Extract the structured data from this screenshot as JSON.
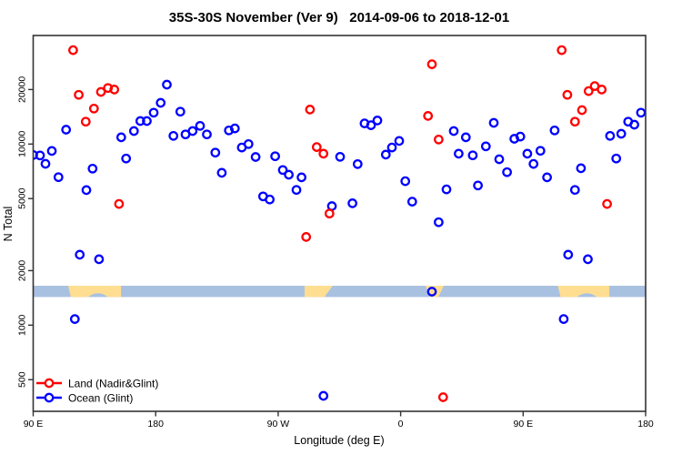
{
  "title": "35S-30S November (Ver 9)   2014-09-06 to 2018-12-01",
  "axes": {
    "x": {
      "label": "Longitude (deg E)",
      "ticks": [
        {
          "t": 0,
          "label": "90 E"
        },
        {
          "t": 90,
          "label": "180"
        },
        {
          "t": 180,
          "label": "90 W"
        },
        {
          "t": 270,
          "label": "0"
        },
        {
          "t": 360,
          "label": "90 E"
        },
        {
          "t": 450,
          "label": "180"
        }
      ]
    },
    "y": {
      "label": "N Total",
      "scale": "log10",
      "ticks": [
        {
          "v": 500,
          "label": "500"
        },
        {
          "v": 1000,
          "label": "1000"
        },
        {
          "v": 2000,
          "label": "2000"
        },
        {
          "v": 5000,
          "label": "5000"
        },
        {
          "v": 10000,
          "label": "10000"
        },
        {
          "v": 20000,
          "label": "20000"
        }
      ]
    }
  },
  "legend": [
    {
      "label": "Land (Nadir&Glint)",
      "color": "#ff0000"
    },
    {
      "label": "Ocean (Glint)",
      "color": "#0000ff"
    }
  ],
  "colors": {
    "land_series": "#ff0000",
    "ocean_series": "#0000ff",
    "band_ocean": "#a9c1e1",
    "band_land": "#ffde91",
    "axis_line": "#333333"
  },
  "chart_data": {
    "type": "scatter",
    "title": "35S-30S November (Ver 9)   2014-09-06 to 2018-12-01",
    "xlabel": "Longitude (deg E)",
    "ylabel": "N Total",
    "x_axis_note": "x = degrees eastward along axis starting at 90E; axis spans 450 deg (90E -> 180 -> 90W -> 0 -> 90E -> 180), so 90E-180 data appears at both ends",
    "x_range_deg": [
      0,
      450
    ],
    "ylim": [
      330,
      40000
    ],
    "y_scale": "log10",
    "grid": false,
    "legend_position": "bottom-left inside plot",
    "series": [
      {
        "name": "Land (Nadir&Glint)",
        "color": "#ff0000",
        "points": [
          [
            29.3,
            33000
          ],
          [
            33.5,
            18700
          ],
          [
            38.6,
            13300
          ],
          [
            44.6,
            15700
          ],
          [
            49.8,
            19400
          ],
          [
            54.9,
            20400
          ],
          [
            59.6,
            20000
          ],
          [
            63.1,
            4670
          ],
          [
            200.6,
            3070
          ],
          [
            203.4,
            15500
          ],
          [
            208.3,
            9630
          ],
          [
            213.3,
            8850
          ],
          [
            217.7,
            4130
          ],
          [
            290.1,
            14300
          ],
          [
            293.0,
            27600
          ],
          [
            297.9,
            10600
          ],
          [
            301.2,
            400
          ],
          [
            388.3,
            33000
          ],
          [
            392.5,
            18700
          ],
          [
            398.1,
            13300
          ],
          [
            403.2,
            15400
          ],
          [
            408.1,
            19600
          ],
          [
            412.6,
            20900
          ],
          [
            417.7,
            20000
          ],
          [
            421.7,
            4670
          ]
        ]
      },
      {
        "name": "Ocean (Glint)",
        "color": "#0000ff",
        "points": [
          [
            0.0,
            8700
          ],
          [
            5.0,
            8650
          ],
          [
            9.0,
            7780
          ],
          [
            13.7,
            9160
          ],
          [
            18.6,
            6560
          ],
          [
            24.2,
            12000
          ],
          [
            30.6,
            1080
          ],
          [
            34.2,
            2450
          ],
          [
            39.1,
            5570
          ],
          [
            43.6,
            7320
          ],
          [
            48.4,
            2310
          ],
          [
            64.7,
            10900
          ],
          [
            68.3,
            8320
          ],
          [
            74.0,
            11800
          ],
          [
            78.7,
            13400
          ],
          [
            83.5,
            13400
          ],
          [
            88.5,
            14900
          ],
          [
            93.7,
            16900
          ],
          [
            98.2,
            21300
          ],
          [
            103.0,
            11100
          ],
          [
            108.1,
            15100
          ],
          [
            111.9,
            11300
          ],
          [
            117.1,
            11800
          ],
          [
            122.6,
            12600
          ],
          [
            127.6,
            11300
          ],
          [
            133.8,
            8970
          ],
          [
            138.6,
            6940
          ],
          [
            143.8,
            11900
          ],
          [
            148.2,
            12200
          ],
          [
            153.3,
            9570
          ],
          [
            158.2,
            10000
          ],
          [
            163.4,
            8480
          ],
          [
            168.9,
            5140
          ],
          [
            173.8,
            4940
          ],
          [
            177.8,
            8560
          ],
          [
            183.4,
            7190
          ],
          [
            187.8,
            6770
          ],
          [
            193.4,
            5580
          ],
          [
            197.2,
            6550
          ],
          [
            213.3,
            407
          ],
          [
            219.5,
            4540
          ],
          [
            225.5,
            8500
          ],
          [
            234.6,
            4710
          ],
          [
            238.4,
            7750
          ],
          [
            243.5,
            13000
          ],
          [
            248.2,
            12700
          ],
          [
            252.9,
            13500
          ],
          [
            259.1,
            8740
          ],
          [
            263.6,
            9570
          ],
          [
            268.9,
            10400
          ],
          [
            273.4,
            6240
          ],
          [
            278.5,
            4810
          ],
          [
            293.0,
            1530
          ],
          [
            297.9,
            3700
          ],
          [
            303.7,
            5620
          ],
          [
            309.0,
            11800
          ],
          [
            312.6,
            8850
          ],
          [
            317.9,
            10900
          ],
          [
            323.0,
            8660
          ],
          [
            326.8,
            5910
          ],
          [
            332.6,
            9720
          ],
          [
            338.4,
            13100
          ],
          [
            342.4,
            8240
          ],
          [
            348.2,
            6990
          ],
          [
            353.5,
            10700
          ],
          [
            357.9,
            11000
          ],
          [
            363.1,
            8850
          ],
          [
            367.6,
            7770
          ],
          [
            372.7,
            9180
          ],
          [
            377.6,
            6550
          ],
          [
            383.1,
            11900
          ],
          [
            389.8,
            1080
          ],
          [
            393.1,
            2450
          ],
          [
            398.1,
            5580
          ],
          [
            402.5,
            7350
          ],
          [
            407.6,
            2310
          ],
          [
            423.9,
            11100
          ],
          [
            428.4,
            8320
          ],
          [
            432.1,
            11400
          ],
          [
            437.2,
            13300
          ],
          [
            441.7,
            12800
          ],
          [
            446.6,
            14900
          ]
        ]
      }
    ],
    "map_band": {
      "description": "horizontal strip showing ocean/land along the 35S-30S latitude belt",
      "n_range": [
        1430,
        1650
      ],
      "ocean_color": "#a9c1e1",
      "land_color": "#ffde91",
      "land_segments_deg": [
        {
          "t1": 25.7,
          "t2": 64.5,
          "shape": "aus",
          "name": "Australia"
        },
        {
          "t1": 199.4,
          "t2": 220.0,
          "shape": "sam",
          "name": "South America"
        },
        {
          "t1": 288.3,
          "t2": 301.7,
          "shape": "afr",
          "name": "Southern Africa"
        },
        {
          "t1": 385.5,
          "t2": 423.3,
          "shape": "aus",
          "name": "Australia (wrap)"
        }
      ]
    },
    "marker": {
      "style": "open-circle",
      "radius_px": 4.2,
      "stroke_px": 2.3
    }
  }
}
